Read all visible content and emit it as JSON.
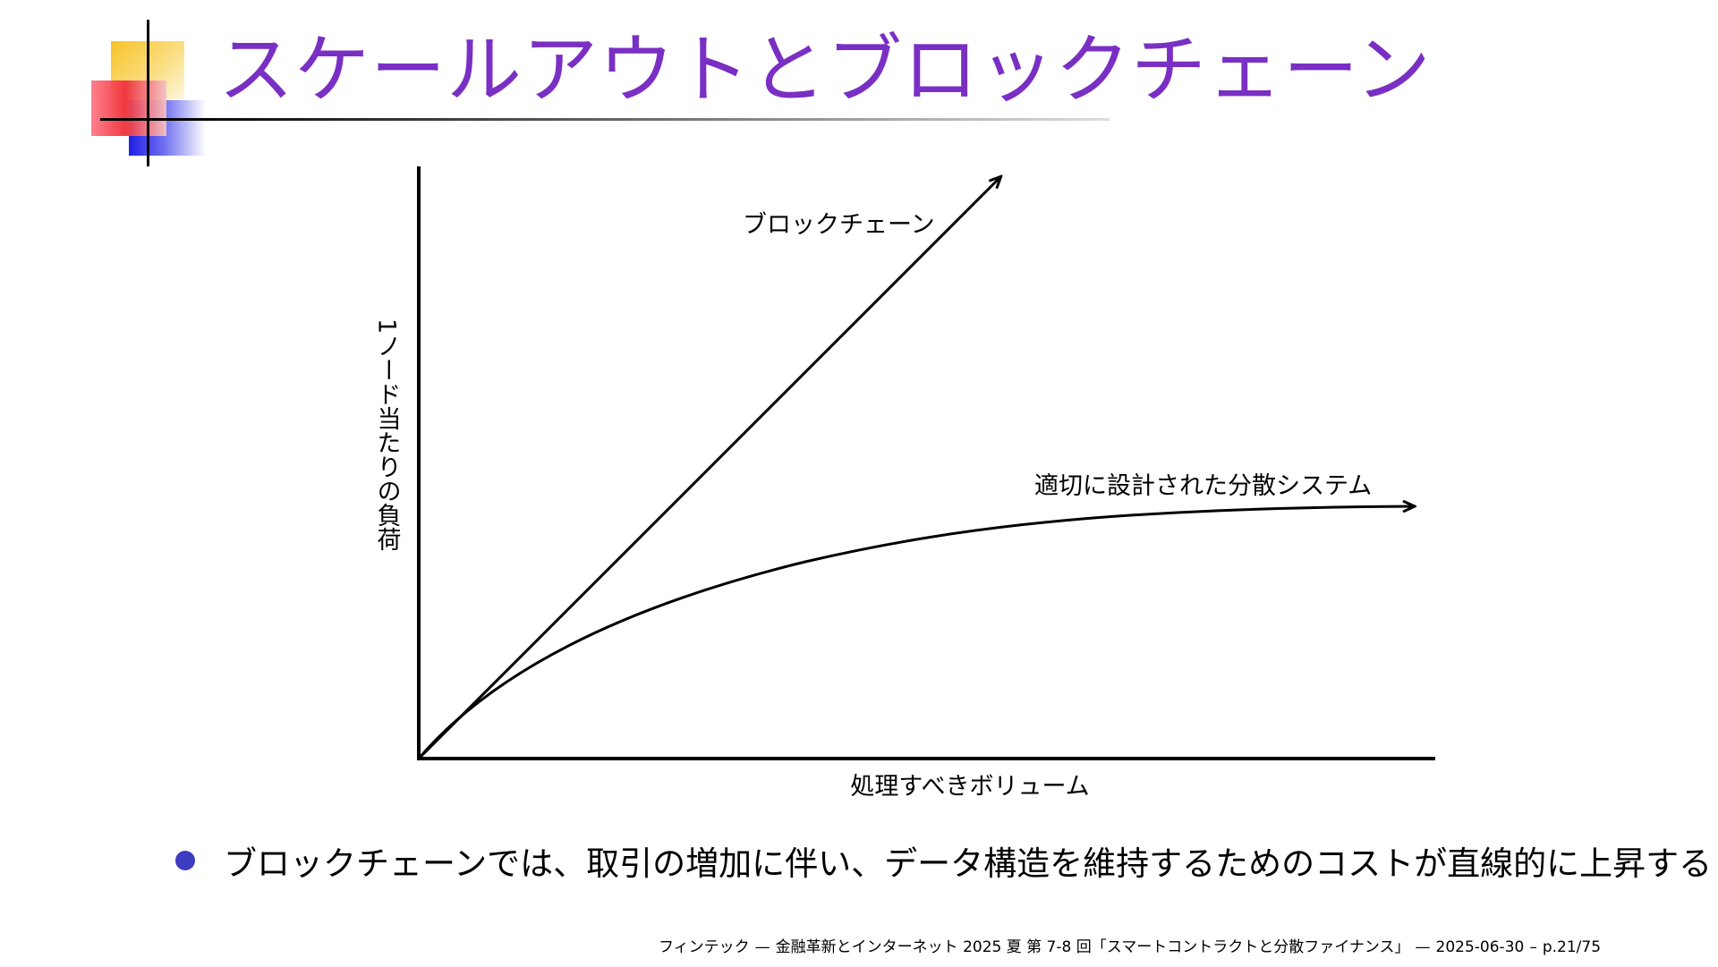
{
  "slide": {
    "title": "スケールアウトとブロックチェーン",
    "bullet": "ブロックチェーンでは、取引の増加に伴い、データ構造を維持するためのコストが直線的に上昇する"
  },
  "diagram": {
    "y_axis_label": "1ノード当たりの負荷",
    "x_axis_label": "処理すべきボリューム",
    "curves": [
      {
        "label": "ブロックチェーン",
        "shape": "linear"
      },
      {
        "label": "適切に設計された分散システム",
        "shape": "saturating"
      }
    ]
  },
  "footer": {
    "course": "フィンテック",
    "sep1": "—",
    "subtitle": "金融革新とインターネット 2025 夏 第 7-8 回「スマートコントラクトと分散ファイナンス」",
    "sep2": "—",
    "date": "2025-06-30",
    "sep3": "–",
    "page": "p.21/75"
  }
}
